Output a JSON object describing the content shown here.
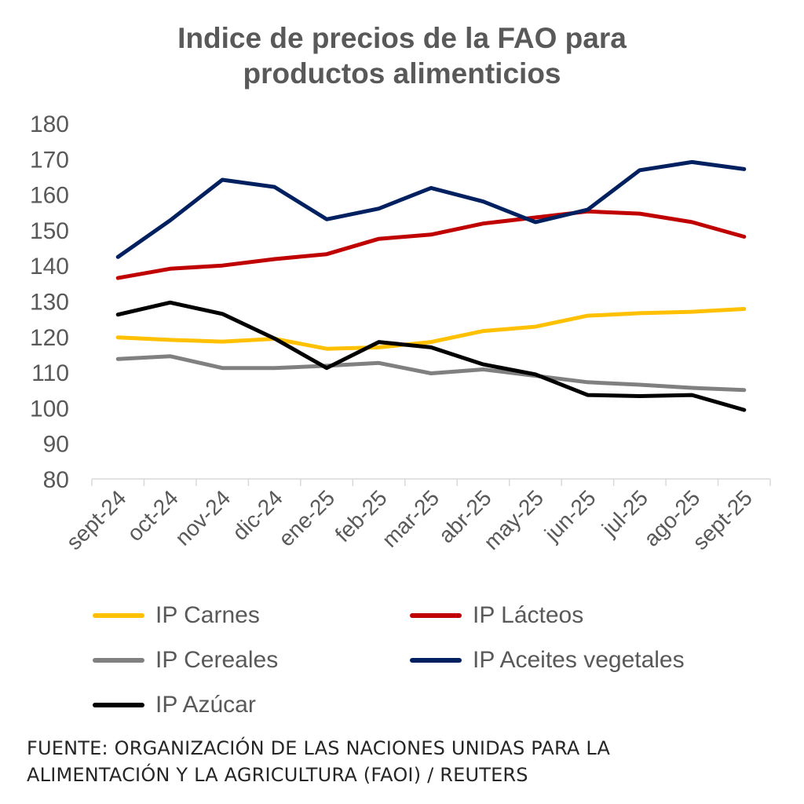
{
  "chart_data": {
    "type": "line",
    "title_lines": [
      "Indice de precios de la FAO para",
      "productos alimenticios"
    ],
    "categories": [
      "sept-24",
      "oct-24",
      "nov-24",
      "dic-24",
      "ene-25",
      "feb-25",
      "mar-25",
      "abr-25",
      "may-25",
      "jun-25",
      "jul-25",
      "ago-25",
      "sept-25"
    ],
    "ylim": [
      80,
      180
    ],
    "yticks": [
      80,
      90,
      100,
      110,
      120,
      130,
      140,
      150,
      160,
      170,
      180
    ],
    "grid": false,
    "legend_position": "bottom",
    "series": [
      {
        "name": "IP Carnes",
        "color": "#FFC000",
        "values": [
          119.8,
          119.1,
          118.6,
          119.4,
          116.6,
          117.0,
          118.5,
          121.6,
          122.8,
          125.9,
          126.6,
          127.0,
          127.8
        ]
      },
      {
        "name": "IP Lácteos",
        "color": "#C00000",
        "values": [
          136.5,
          139.1,
          140.0,
          141.8,
          143.2,
          147.5,
          148.7,
          151.8,
          153.5,
          155.2,
          154.6,
          152.2,
          148.1
        ]
      },
      {
        "name": "IP Cereales",
        "color": "#808080",
        "values": [
          113.7,
          114.5,
          111.2,
          111.2,
          111.8,
          112.6,
          109.7,
          110.8,
          109.0,
          107.2,
          106.5,
          105.6,
          105.0
        ]
      },
      {
        "name": "IP Aceites vegetales",
        "color": "#002060",
        "values": [
          142.4,
          152.7,
          164.1,
          162.1,
          153.0,
          156.0,
          161.8,
          158.0,
          152.2,
          155.7,
          166.8,
          169.1,
          167.1
        ]
      },
      {
        "name": "IP Azúcar",
        "color": "#000000",
        "values": [
          126.2,
          129.6,
          126.4,
          119.5,
          111.2,
          118.5,
          117.0,
          112.2,
          109.4,
          103.6,
          103.3,
          103.6,
          99.4
        ]
      }
    ]
  },
  "source_lines": [
    "FUENTE: ORGANIZACIÓN DE LAS NACIONES UNIDAS PARA LA",
    "ALIMENTACIÓN Y LA AGRICULTURA (FAOI) / REUTERS"
  ]
}
